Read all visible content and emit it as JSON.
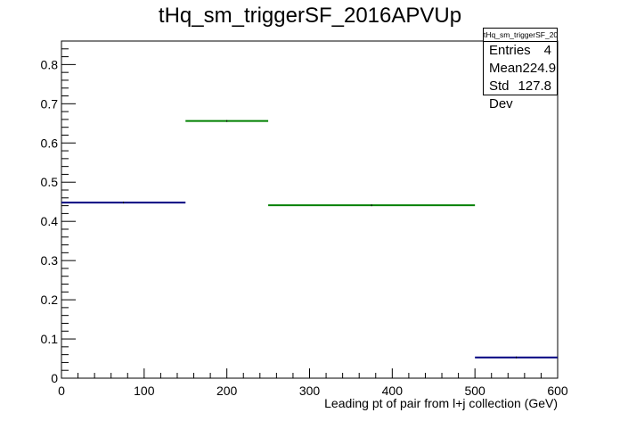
{
  "chart_data": {
    "type": "histogram",
    "title": "tHq_sm_triggerSF_2016APVUp",
    "xlabel": "Leading pt of pair from l+j collection (GeV)",
    "ylabel": "",
    "xlim": [
      0,
      600
    ],
    "ylim": [
      0,
      0.86
    ],
    "x_ticks": [
      0,
      100,
      200,
      300,
      400,
      500,
      600
    ],
    "y_ticks": [
      0,
      0.1,
      0.2,
      0.3,
      0.4,
      0.5,
      0.6,
      0.7,
      0.8
    ],
    "grid": false,
    "series": [
      {
        "color": "#000080",
        "bins": [
          {
            "xlow": 0,
            "xhigh": 150,
            "value": 0.448
          },
          {
            "xlow": 500,
            "xhigh": 600,
            "value": 0.053
          }
        ]
      },
      {
        "color": "#008000",
        "bins": [
          {
            "xlow": 150,
            "xhigh": 250,
            "value": 0.656
          },
          {
            "xlow": 250,
            "xhigh": 500,
            "value": 0.441
          }
        ]
      }
    ],
    "stats": {
      "name": "tHq_sm_triggerSF_2016APVUp",
      "entries_label": "Entries",
      "entries": "4",
      "mean_label": "Mean",
      "mean": "224.9",
      "stddev_label": "Std Dev",
      "stddev": "127.8"
    }
  }
}
